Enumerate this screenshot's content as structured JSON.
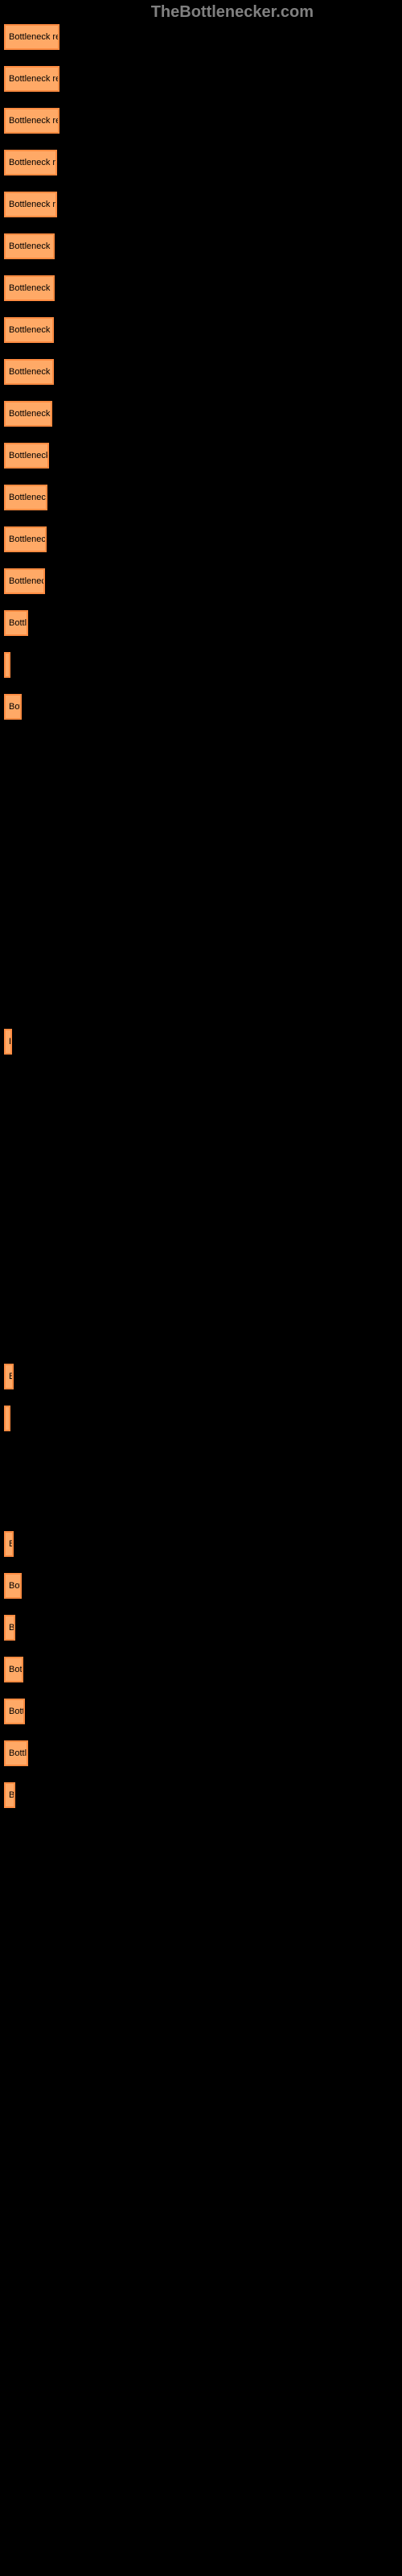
{
  "watermark": "TheBottlenecker.com",
  "chart": {
    "type": "bar-horizontal",
    "background_color": "#000000",
    "bar_fill_color": "#ffa966",
    "bar_border_color": "#ff8c42",
    "bar_border_width": 2,
    "label_color": "#000000",
    "label_fontsize": 11,
    "bars": [
      {
        "width": 69,
        "label": "Bottleneck res"
      },
      {
        "width": 69,
        "label": "Bottleneck res"
      },
      {
        "width": 69,
        "label": "Bottleneck res"
      },
      {
        "width": 66,
        "label": "Bottleneck re"
      },
      {
        "width": 66,
        "label": "Bottleneck re"
      },
      {
        "width": 63,
        "label": "Bottleneck re"
      },
      {
        "width": 63,
        "label": "Bottleneck re"
      },
      {
        "width": 62,
        "label": "Bottleneck re"
      },
      {
        "width": 62,
        "label": "Bottleneck re"
      },
      {
        "width": 60,
        "label": "Bottleneck r"
      },
      {
        "width": 56,
        "label": "Bottleneck"
      },
      {
        "width": 54,
        "label": "Bottleneck"
      },
      {
        "width": 53,
        "label": "Bottleneck"
      },
      {
        "width": 51,
        "label": "Bottleneck"
      },
      {
        "width": 30,
        "label": "Bottle"
      },
      {
        "width": 6,
        "label": ""
      },
      {
        "width": 22,
        "label": "Bott"
      },
      {
        "width": 0,
        "label": ""
      },
      {
        "width": 0,
        "label": ""
      },
      {
        "width": 0,
        "label": ""
      },
      {
        "width": 0,
        "label": ""
      },
      {
        "width": 0,
        "label": ""
      },
      {
        "width": 0,
        "label": ""
      },
      {
        "width": 0,
        "label": ""
      },
      {
        "width": 10,
        "label": "B"
      },
      {
        "width": 0,
        "label": ""
      },
      {
        "width": 0,
        "label": ""
      },
      {
        "width": 0,
        "label": ""
      },
      {
        "width": 0,
        "label": ""
      },
      {
        "width": 0,
        "label": ""
      },
      {
        "width": 0,
        "label": ""
      },
      {
        "width": 0,
        "label": ""
      },
      {
        "width": 12,
        "label": "B"
      },
      {
        "width": 4,
        "label": ""
      },
      {
        "width": 0,
        "label": ""
      },
      {
        "width": 0,
        "label": ""
      },
      {
        "width": 12,
        "label": "B"
      },
      {
        "width": 22,
        "label": "Bott"
      },
      {
        "width": 14,
        "label": "Bo"
      },
      {
        "width": 24,
        "label": "Bottl"
      },
      {
        "width": 26,
        "label": "Bottl"
      },
      {
        "width": 30,
        "label": "Bottle"
      },
      {
        "width": 14,
        "label": "Bo"
      }
    ]
  }
}
